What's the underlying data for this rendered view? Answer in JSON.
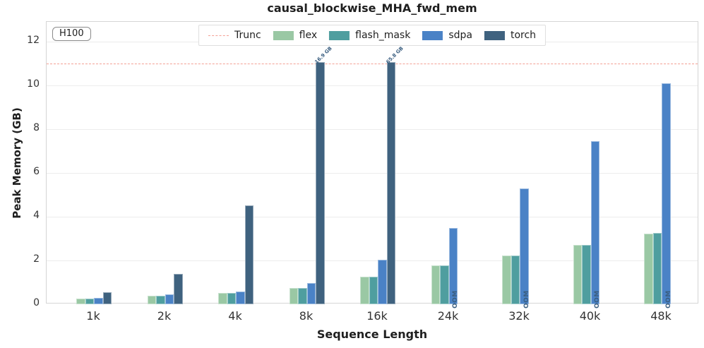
{
  "chart_data": {
    "type": "bar",
    "title": "causal_blockwise_MHA_fwd_mem",
    "xlabel": "Sequence Length",
    "ylabel": "Peak Memory (GB)",
    "annotation_box": "H100",
    "categories": [
      "1k",
      "2k",
      "4k",
      "8k",
      "16k",
      "24k",
      "32k",
      "40k",
      "48k"
    ],
    "series": [
      {
        "name": "flex",
        "color": "#9ac8a4",
        "values": [
          0.25,
          0.38,
          0.5,
          0.74,
          1.26,
          1.76,
          2.22,
          2.71,
          3.24
        ]
      },
      {
        "name": "flash_mask",
        "color": "#4f9e9f",
        "values": [
          0.26,
          0.39,
          0.52,
          0.75,
          1.27,
          1.77,
          2.23,
          2.72,
          3.25
        ]
      },
      {
        "name": "sdpa",
        "color": "#4a82c6",
        "values": [
          0.28,
          0.44,
          0.57,
          0.97,
          2.02,
          3.47,
          5.3,
          7.45,
          10.08
        ]
      },
      {
        "name": "torch",
        "color": "#3f627f",
        "values": [
          0.55,
          1.4,
          4.5,
          16.9,
          65.8,
          null,
          null,
          null,
          null
        ],
        "bar_labels": [
          null,
          null,
          null,
          "16.9 GB",
          "65.8 GB",
          null,
          null,
          null,
          null
        ],
        "oom_flags": [
          false,
          false,
          false,
          false,
          false,
          true,
          true,
          true,
          true
        ]
      }
    ],
    "bar_display_cap": 11.05,
    "reference_line": {
      "label": "Trunc",
      "y": 11,
      "color": "#f4a094",
      "style": "dashed"
    },
    "oom_text": "OOM",
    "ylim": [
      0,
      12.9
    ],
    "yticks": [
      0,
      2,
      4,
      6,
      8,
      10,
      12
    ],
    "grid": true,
    "legend_position": "top-center",
    "label_color": "#3a5e80"
  }
}
